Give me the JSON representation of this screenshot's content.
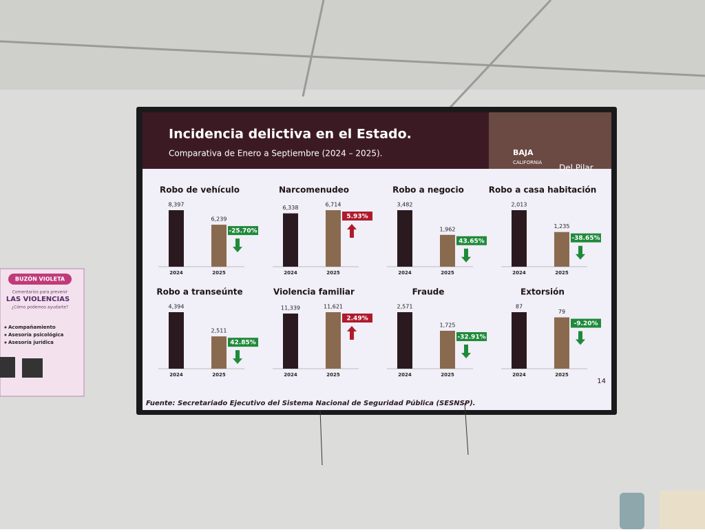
{
  "slide": {
    "title": "Incidencia delictiva en el Estado.",
    "subtitle": "Comparativa de Enero a Septiembre (2024 – 2025).",
    "logo": [
      "BAJA",
      "CALIFORNIA",
      "Del Pilar"
    ],
    "source": "Fuente: Secretariado Ejecutivo del Sistema Nacional de Seguridad Pública (SESNSP).",
    "page": 14
  },
  "poster": {
    "title": "BUZÓN VIOLETA",
    "lead": "Comentarios para prevenir",
    "headline": "LAS VIOLENCIAS",
    "question": "¿Cómo podemos ayudarte?",
    "items": [
      "Acompañamiento",
      "Asesoría psicológica",
      "Asesoría jurídica"
    ]
  },
  "chart_data": [
    {
      "type": "bar",
      "title": "Robo de vehículo",
      "categories": [
        "2024",
        "2025"
      ],
      "values": [
        8397,
        6239
      ],
      "value_labels": [
        "8,397",
        "6,239"
      ],
      "colors": [
        "#2a1a1f",
        "#8a6a4e"
      ],
      "annotation": "-25.70%",
      "trend": "down",
      "annotation_color": "#1f8a3a"
    },
    {
      "type": "bar",
      "title": "Narcomenudeo",
      "categories": [
        "2024",
        "2025"
      ],
      "values": [
        6338,
        6714
      ],
      "value_labels": [
        "6,338",
        "6,714"
      ],
      "colors": [
        "#2a1a1f",
        "#8a6a4e"
      ],
      "annotation": "5.93%",
      "trend": "up",
      "annotation_color": "#b01a2c"
    },
    {
      "type": "bar",
      "title": "Robo a negocio",
      "categories": [
        "2024",
        "2025"
      ],
      "values": [
        3482,
        1962
      ],
      "value_labels": [
        "3,482",
        "1,962"
      ],
      "colors": [
        "#2a1a1f",
        "#8a6a4e"
      ],
      "annotation": "43.65%",
      "trend": "down",
      "annotation_color": "#1f8a3a"
    },
    {
      "type": "bar",
      "title": "Robo a casa habitación",
      "categories": [
        "2024",
        "2025"
      ],
      "values": [
        2013,
        1235
      ],
      "value_labels": [
        "2,013",
        "1,235"
      ],
      "colors": [
        "#2a1a1f",
        "#8a6a4e"
      ],
      "annotation": "-38.65%",
      "trend": "down",
      "annotation_color": "#1f8a3a"
    },
    {
      "type": "bar",
      "title": "Robo a transeúnte",
      "categories": [
        "2024",
        "2025"
      ],
      "values": [
        4394,
        2511
      ],
      "value_labels": [
        "4,394",
        "2,511"
      ],
      "colors": [
        "#2a1a1f",
        "#8a6a4e"
      ],
      "annotation": "42.85%",
      "trend": "down",
      "annotation_color": "#1f8a3a"
    },
    {
      "type": "bar",
      "title": "Violencia familiar",
      "categories": [
        "2024",
        "2025"
      ],
      "values": [
        11339,
        11621
      ],
      "value_labels": [
        "11,339",
        "11,621"
      ],
      "colors": [
        "#2a1a1f",
        "#8a6a4e"
      ],
      "annotation": "2.49%",
      "trend": "up",
      "annotation_color": "#b01a2c"
    },
    {
      "type": "bar",
      "title": "Fraude",
      "categories": [
        "2024",
        "2025"
      ],
      "values": [
        2571,
        1725
      ],
      "value_labels": [
        "2,571",
        "1,725"
      ],
      "colors": [
        "#2a1a1f",
        "#8a6a4e"
      ],
      "annotation": "-32.91%",
      "trend": "down",
      "annotation_color": "#1f8a3a"
    },
    {
      "type": "bar",
      "title": "Extorsión",
      "categories": [
        "2024",
        "2025"
      ],
      "values": [
        87,
        79
      ],
      "value_labels": [
        "87",
        "79"
      ],
      "colors": [
        "#2a1a1f",
        "#8a6a4e"
      ],
      "annotation": "-9.20%",
      "trend": "down",
      "annotation_color": "#1f8a3a"
    }
  ]
}
